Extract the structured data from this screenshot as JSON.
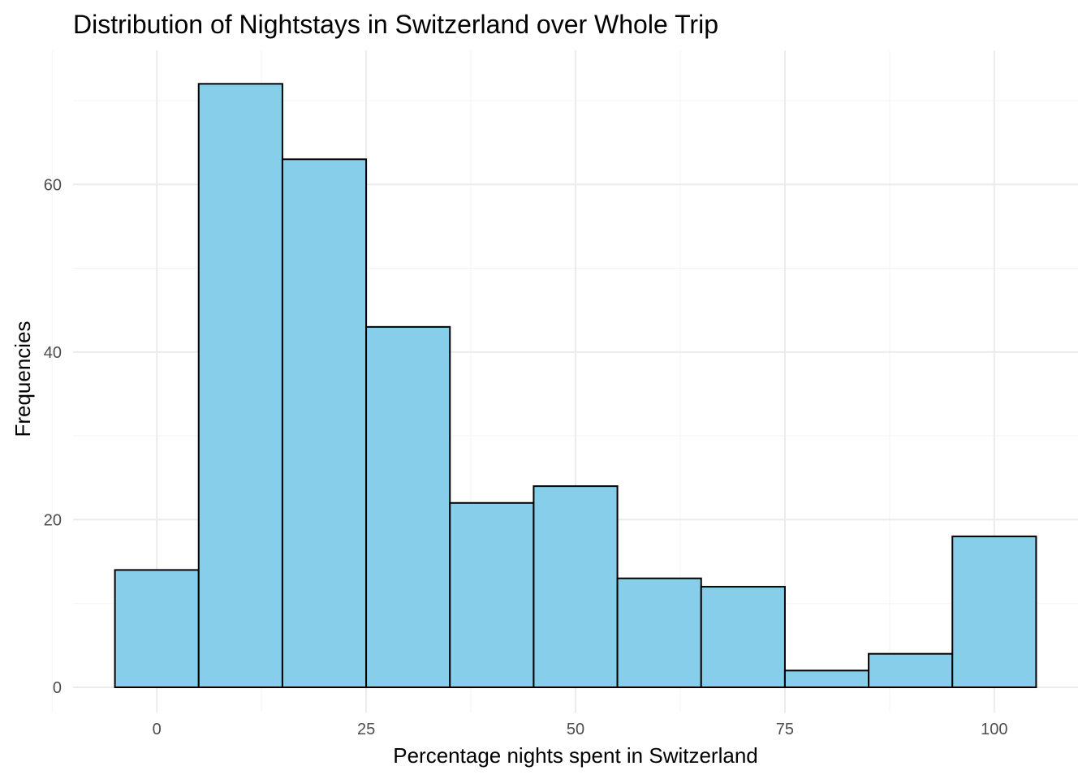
{
  "chart_data": {
    "type": "bar",
    "title": "Distribution of Nightstays in Switzerland over Whole Trip",
    "xlabel": "Percentage nights spent in Switzerland",
    "ylabel": "Frequencies",
    "bin_width": 10,
    "bin_centers": [
      0,
      10,
      20,
      30,
      40,
      50,
      60,
      70,
      80,
      90,
      100
    ],
    "values": [
      14,
      72,
      63,
      43,
      22,
      24,
      13,
      12,
      2,
      4,
      18
    ],
    "xlim": [
      -10,
      110
    ],
    "ylim": [
      -3,
      76
    ],
    "x_ticks": [
      0,
      25,
      50,
      75,
      100
    ],
    "x_tick_labels": [
      "0",
      "25",
      "50",
      "75",
      "100"
    ],
    "y_ticks": [
      0,
      20,
      40,
      60
    ],
    "y_tick_labels": [
      "0",
      "20",
      "40",
      "60"
    ],
    "grid": true,
    "legend": "none",
    "colors": {
      "bar_fill": "#87CEEB",
      "bar_outline": "#000000"
    }
  }
}
